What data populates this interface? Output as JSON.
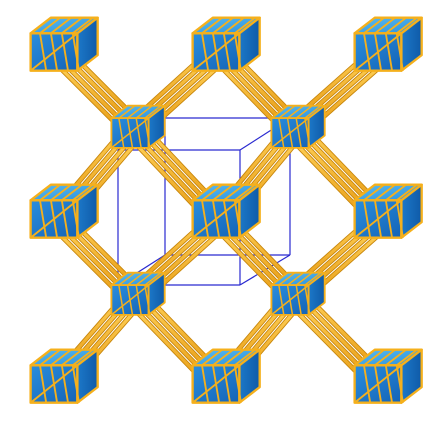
{
  "figure": {
    "background": "#ffffff",
    "colors": {
      "strut": "#f5b01c",
      "strut_dark": "#c8860a",
      "face_light": "#3aa7e8",
      "face_mid": "#1f86d6",
      "face_dark": "#1565b8",
      "cell_line": "#2a2ad0"
    }
  }
}
